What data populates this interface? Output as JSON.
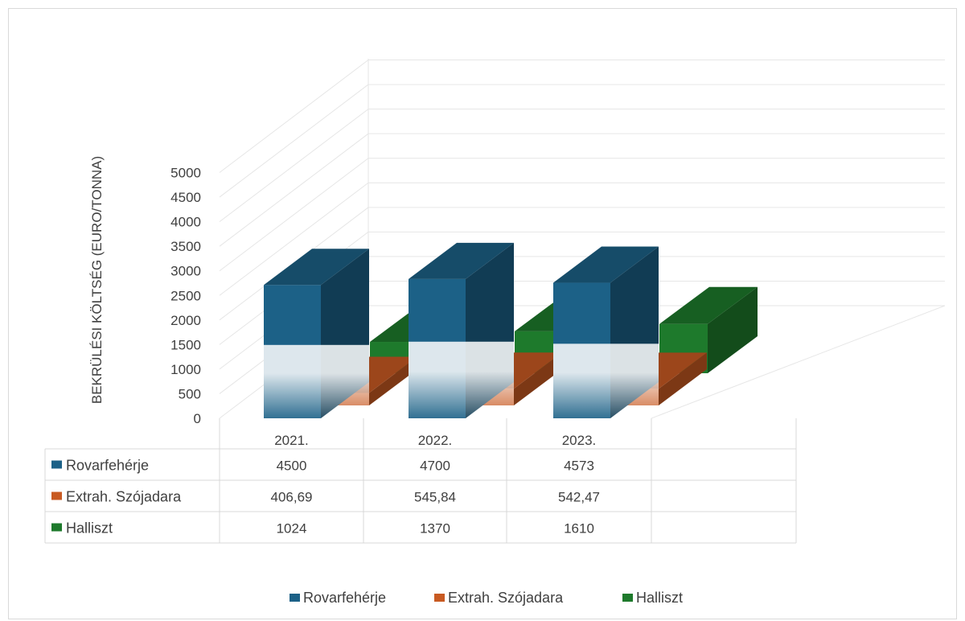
{
  "chart_data": {
    "type": "bar",
    "subtype": "3d-column-with-data-table",
    "title": "",
    "ylabel": "BEKRÜLÉSI KÖLTSÉG (EURO/TONNA)",
    "ylim": [
      0,
      5000
    ],
    "yticks": [
      "0",
      "500",
      "1000",
      "1500",
      "2000",
      "2500",
      "3000",
      "3500",
      "4000",
      "4500",
      "5000"
    ],
    "categories": [
      "2021.",
      "2022.",
      "2023."
    ],
    "grid": true,
    "legend_position": "bottom",
    "series": [
      {
        "name": "Rovarfehérje",
        "color": "#1c6187",
        "values": [
          4500,
          4700,
          4573
        ],
        "labels": [
          "4500",
          "4700",
          "4573"
        ]
      },
      {
        "name": "Extrah. Szójadara",
        "color": "#c85a22",
        "values": [
          406.69,
          545.84,
          542.47
        ],
        "labels": [
          "406,69",
          "545,84",
          "542,47"
        ]
      },
      {
        "name": "Halliszt",
        "color": "#1e7a2c",
        "values": [
          1024,
          1370,
          1610
        ],
        "labels": [
          "1024",
          "1370",
          "1610"
        ]
      }
    ]
  }
}
